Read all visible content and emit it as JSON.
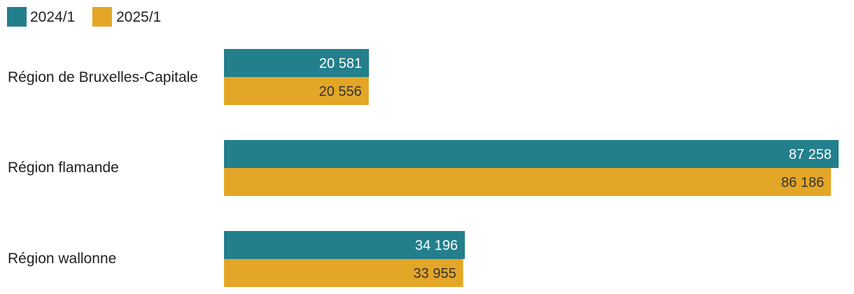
{
  "chart_data": {
    "type": "bar",
    "orientation": "horizontal",
    "title": "",
    "xlabel": "",
    "ylabel": "",
    "categories": [
      "Région de Bruxelles-Capitale",
      "Région flamande",
      "Région wallonne"
    ],
    "series": [
      {
        "name": "2024/1",
        "color": "#237f8c",
        "label_color": "#ffffff",
        "values": [
          20581,
          87258,
          34196
        ],
        "labels": [
          "20 581",
          "87 258",
          "34 196"
        ]
      },
      {
        "name": "2025/1",
        "color": "#e4a626",
        "label_color": "#333333",
        "values": [
          20556,
          86186,
          33955
        ],
        "labels": [
          "20 556",
          "86 186",
          "33 955"
        ]
      }
    ],
    "xlim": [
      0,
      87258
    ],
    "grid": false,
    "legend_position": "top-left"
  }
}
